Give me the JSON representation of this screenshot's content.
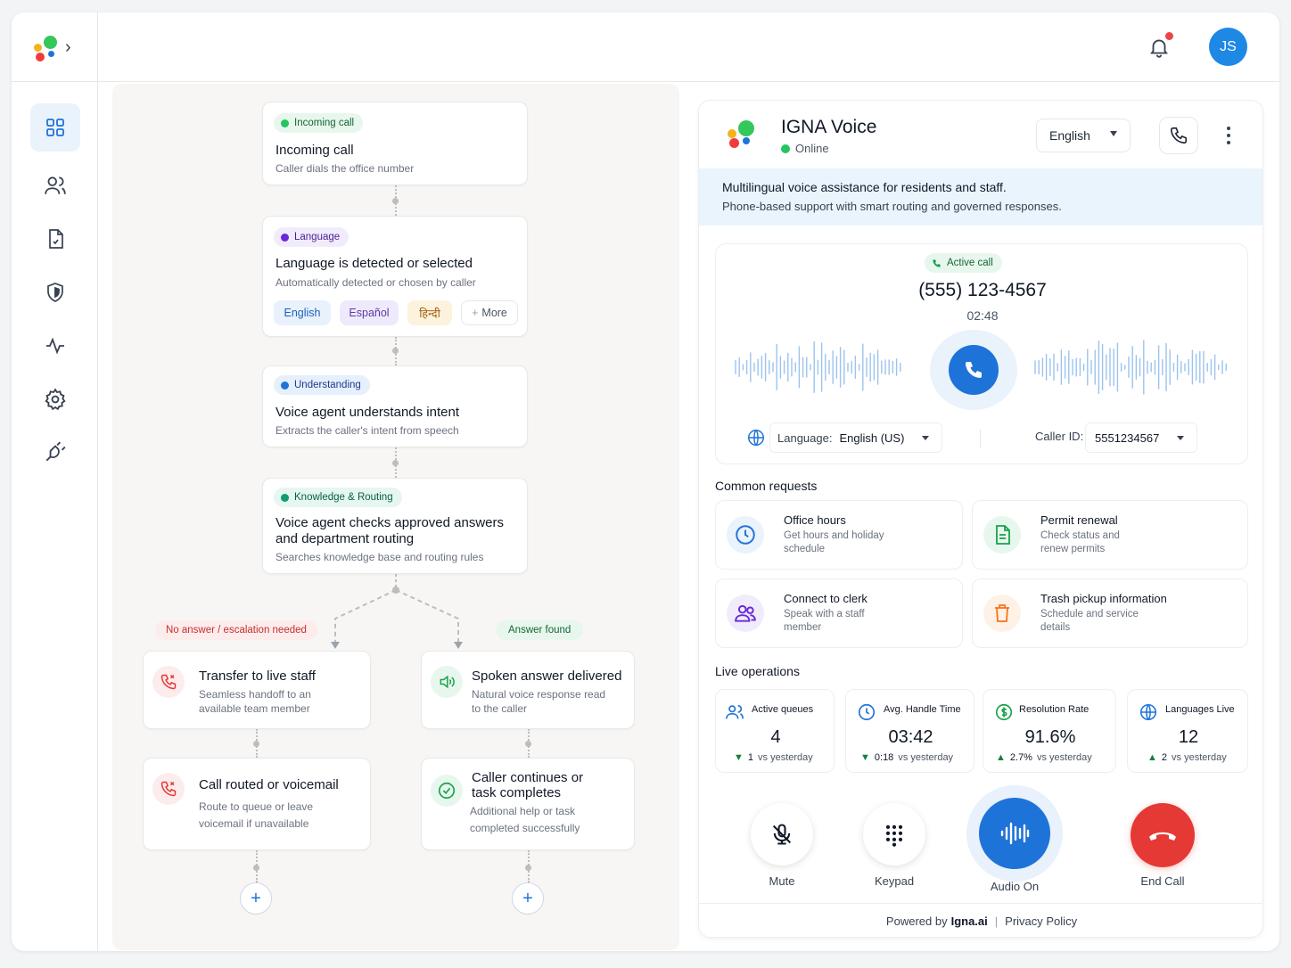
{
  "topbar": {
    "avatar_initials": "JS"
  },
  "sidebar": {
    "items": [
      {
        "icon": "dashboard-icon",
        "active": true
      },
      {
        "icon": "users-icon"
      },
      {
        "icon": "document-icon"
      },
      {
        "icon": "shield-icon"
      },
      {
        "icon": "activity-icon"
      },
      {
        "icon": "gear-icon"
      },
      {
        "icon": "plug-icon"
      }
    ]
  },
  "flow": {
    "step1": {
      "badge": "Incoming call",
      "title": "Incoming call",
      "subtitle": "Caller dials the office number"
    },
    "step2": {
      "badge": "Language",
      "title": "Language is detected or selected",
      "subtitle": "Automatically detected or chosen by caller",
      "languages": [
        "English",
        "Español",
        "हिन्दी"
      ],
      "more": "More"
    },
    "step3": {
      "badge": "Understanding",
      "title": "Voice agent understands intent",
      "subtitle": "Extracts the caller's intent from speech"
    },
    "step4": {
      "badge": "Knowledge & Routing",
      "title_line1": "Voice agent checks approved answers",
      "title_line2": "and department routing",
      "subtitle": "Searches knowledge base and routing rules"
    },
    "branch_left_label": "No answer / escalation needed",
    "branch_right_label": "Answer found",
    "left1": {
      "title": "Transfer to live staff",
      "sub1": "Seamless handoff to an",
      "sub2": "available team member"
    },
    "left2": {
      "title": "Call routed or voicemail",
      "sub1": "Route to queue or leave",
      "sub2": "voicemail if unavailable"
    },
    "right1": {
      "title": "Spoken answer delivered",
      "sub1": "Natural voice response read",
      "sub2": "to the caller"
    },
    "right2": {
      "title1": "Caller continues or",
      "title2": "task completes",
      "sub1": "Additional help or task",
      "sub2": "completed successfully"
    }
  },
  "voice": {
    "name": "IGNA Voice",
    "status": "Online",
    "language_select": "English",
    "banner_title": "Multilingual voice assistance for residents and staff.",
    "banner_sub": "Phone-based support with smart routing and governed responses.",
    "call": {
      "badge": "Active call",
      "number": "(555) 123-4567",
      "timer": "02:48",
      "language_label": "Language:",
      "language_value": "English (US)",
      "caller_label": "Caller ID:",
      "caller_value": "5551234567"
    },
    "common_title": "Common requests",
    "requests": [
      {
        "title": "Office hours",
        "sub1": "Get hours and holiday",
        "sub2": "schedule"
      },
      {
        "title": "Permit renewal",
        "sub1": "Check status and",
        "sub2": "renew permits"
      },
      {
        "title": "Connect to clerk",
        "sub1": "Speak with a staff",
        "sub2": "member"
      },
      {
        "title": "Trash pickup information",
        "sub1": "Schedule and service",
        "sub2": "details"
      }
    ],
    "live_title": "Live operations",
    "stats": [
      {
        "label": "Active queues",
        "value": "4",
        "delta": "1",
        "delta_text": "vs yesterday",
        "dir": "down"
      },
      {
        "label": "Avg. Handle Time",
        "value": "03:42",
        "delta": "0:18",
        "delta_text": "vs yesterday",
        "dir": "down"
      },
      {
        "label": "Resolution Rate",
        "value": "91.6%",
        "delta": "2.7%",
        "delta_text": "vs yesterday",
        "dir": "up"
      },
      {
        "label": "Languages Live",
        "value": "12",
        "delta": "2",
        "delta_text": "vs yesterday",
        "dir": "up"
      }
    ],
    "controls": {
      "mute": "Mute",
      "keypad": "Keypad",
      "audio": "Audio On",
      "end": "End Call"
    },
    "footer": {
      "powered": "Powered by",
      "brand": "Igna.ai",
      "sep": "|",
      "privacy": "Privacy Policy"
    },
    "colors": {
      "primary": "#1e73d8",
      "danger": "#e53935",
      "success": "#22c55e"
    }
  }
}
